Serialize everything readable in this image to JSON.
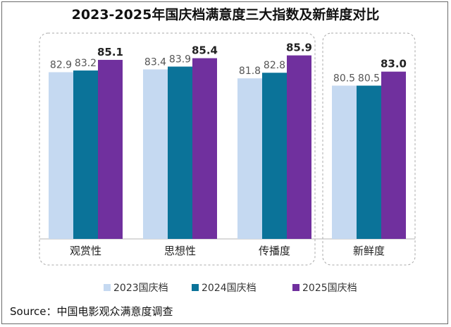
{
  "chart_data": {
    "type": "bar",
    "title": "2023-2025年国庆档满意度三大指数及新鲜度对比",
    "categories": [
      "观赏性",
      "思想性",
      "传播度",
      "新鲜度"
    ],
    "groups": [
      [
        "观赏性",
        "思想性",
        "传播度"
      ],
      [
        "新鲜度"
      ]
    ],
    "series": [
      {
        "name": "2023国庆档",
        "color": "#c5d9f1",
        "values": [
          82.9,
          83.4,
          81.8,
          80.5
        ],
        "labels": [
          "82.9",
          "83.4",
          "81.8",
          "80.5"
        ]
      },
      {
        "name": "2024国庆档",
        "color": "#0b7399",
        "values": [
          83.2,
          83.9,
          82.8,
          80.5
        ],
        "labels": [
          "83.2",
          "83.9",
          "82.8",
          "80.5"
        ]
      },
      {
        "name": "2025国庆档",
        "color": "#70309e",
        "values": [
          85.1,
          85.4,
          85.9,
          83.0
        ],
        "labels": [
          "85.1",
          "85.4",
          "85.9",
          "83.0"
        ]
      }
    ],
    "ylim": [
      0,
      100
    ],
    "xlabel": "",
    "ylabel": "",
    "grid": false,
    "legend_position": "bottom"
  },
  "source": "Source：中国电影观众满意度调查"
}
